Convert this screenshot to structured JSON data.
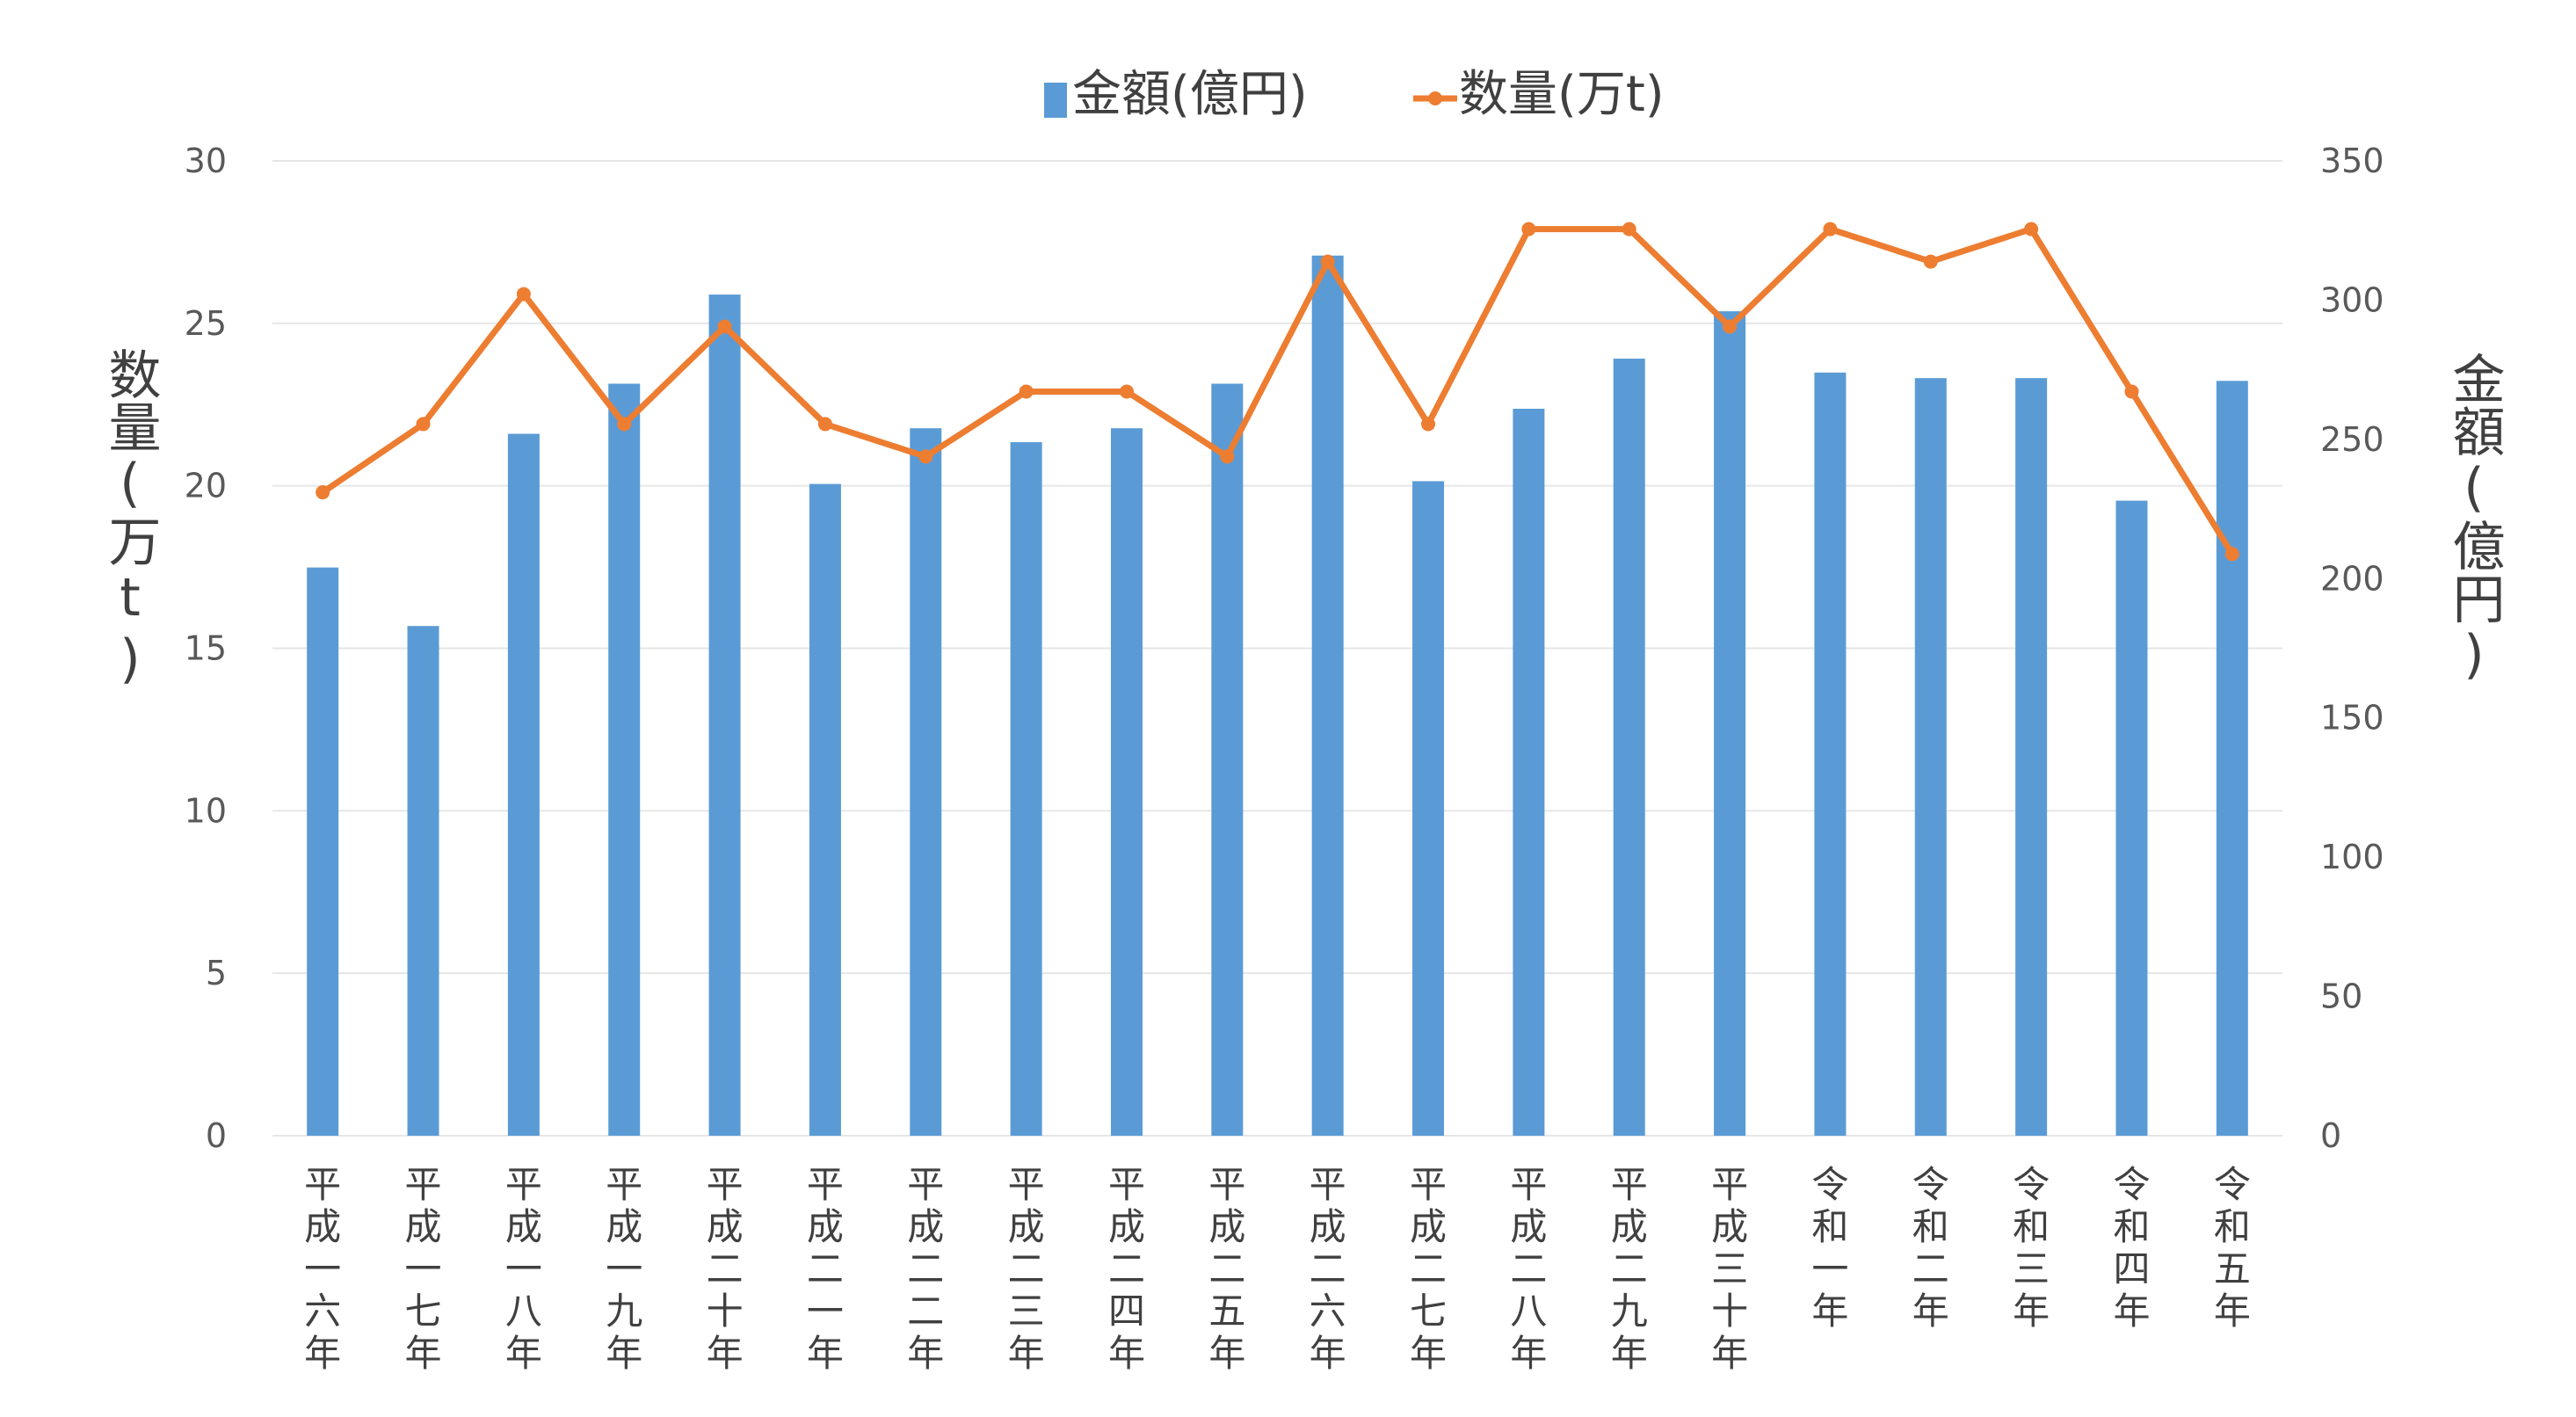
{
  "chart_data": {
    "type": "bar",
    "categories": [
      "平成一六年",
      "平成一七年",
      "平成一八年",
      "平成一九年",
      "平成二十年",
      "平成二一年",
      "平成二二年",
      "平成二三年",
      "平成二四年",
      "平成二五年",
      "平成二六年",
      "平成二七年",
      "平成二八年",
      "平成二九年",
      "平成三十年",
      "令和一年",
      "令和二年",
      "令和三年",
      "令和四年",
      "令和五年"
    ],
    "series": [
      {
        "name": "金額(億円)",
        "type": "bar",
        "axis": "right",
        "color": "#5b9bd5",
        "values": [
          204,
          183,
          252,
          270,
          302,
          234,
          254,
          249,
          254,
          270,
          316,
          235,
          261,
          279,
          296,
          274,
          272,
          272,
          228,
          271
        ]
      },
      {
        "name": "数量(万t)",
        "type": "line",
        "axis": "left",
        "color": "#ed7d31",
        "values": [
          19.8,
          21.9,
          25.9,
          21.9,
          24.9,
          21.9,
          20.9,
          22.9,
          22.9,
          20.9,
          26.9,
          21.9,
          27.9,
          27.9,
          24.9,
          27.9,
          26.9,
          27.9,
          22.9,
          17.9
        ]
      }
    ],
    "ylabel": "数量(万t)",
    "y2label": "金額(億円)",
    "ylim": [
      0,
      30
    ],
    "y2lim": [
      0,
      350
    ],
    "yticks": [
      "0",
      "5",
      "10",
      "15",
      "20",
      "25",
      "30"
    ],
    "y2ticks": [
      "0",
      "50",
      "100",
      "150",
      "200",
      "250",
      "300",
      "350"
    ],
    "grid": true,
    "legend": "top-center"
  }
}
